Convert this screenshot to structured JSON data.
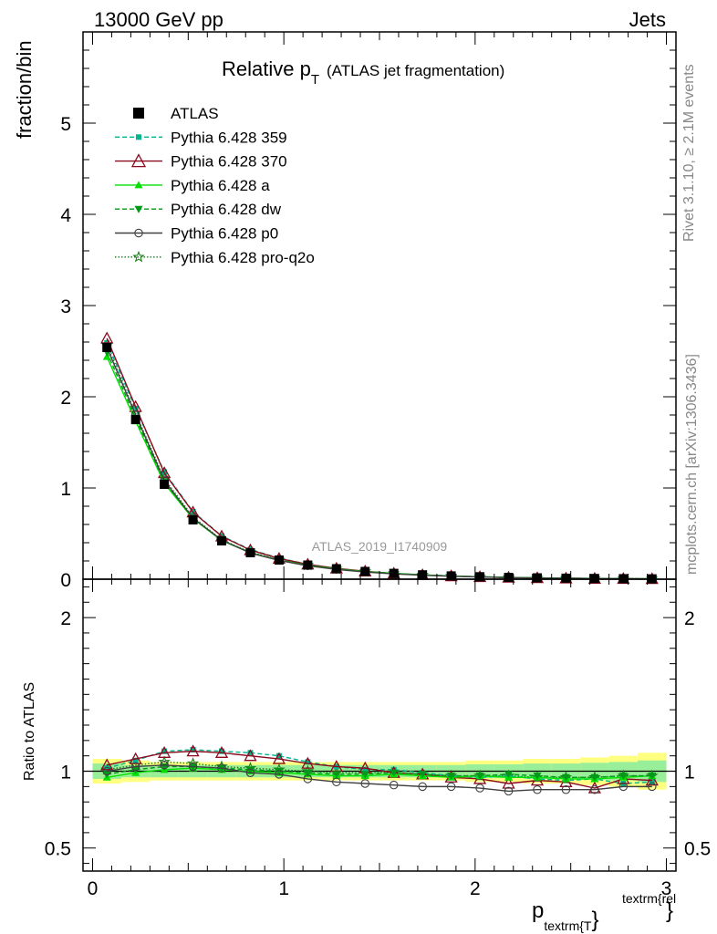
{
  "header": {
    "left": "13000 GeV pp",
    "right": "Jets"
  },
  "side_text": {
    "rivet": "Rivet 3.1.10, ≥ 2.1M events",
    "mcplots": "mcplots.cern.ch [arXiv:1306.3436]"
  },
  "main_panel": {
    "title_main": "Relative p",
    "title_sub": "T",
    "title_suffix": "(ATLAS jet fragmentation)",
    "ylabel": "fraction/bin",
    "watermark": "ATLAS_2019_I1740909"
  },
  "ratio_panel": {
    "ylabel": "Ratio to ATLAS"
  },
  "x_axis": {
    "label_main": "p",
    "label_sub": "textrm{T",
    "label_brace": "}",
    "label_sup": "textrm{rel",
    "label_sup_brace": "}"
  },
  "legend": [
    {
      "label": "ATLAS",
      "color": "#000000",
      "marker": "square-filled",
      "line": "none"
    },
    {
      "label": "Pythia 6.428 359",
      "color": "#00b48c",
      "marker": "square-small-filled",
      "line": "dashed"
    },
    {
      "label": "Pythia 6.428 370",
      "color": "#8b0a1e",
      "marker": "triangle-open",
      "line": "solid"
    },
    {
      "label": "Pythia 6.428 a",
      "color": "#00e000",
      "marker": "triangle-filled",
      "line": "solid"
    },
    {
      "label": "Pythia 6.428 dw",
      "color": "#009a18",
      "marker": "triangle-down-filled",
      "line": "dashed"
    },
    {
      "label": "Pythia 6.428 p0",
      "color": "#404040",
      "marker": "circle-open",
      "line": "solid"
    },
    {
      "label": "Pythia 6.428 pro-q2o",
      "color": "#1e7f1e",
      "marker": "star-open",
      "line": "dotted"
    }
  ],
  "chart_data": {
    "type": "line",
    "x": [
      0.075,
      0.225,
      0.375,
      0.525,
      0.675,
      0.825,
      0.975,
      1.125,
      1.275,
      1.425,
      1.575,
      1.725,
      1.875,
      2.025,
      2.175,
      2.325,
      2.475,
      2.625,
      2.775,
      2.925
    ],
    "xlim": [
      -0.05,
      3.05
    ],
    "xticks": [
      0,
      1,
      2,
      3
    ],
    "ylim": [
      0,
      6.0
    ],
    "yticks": [
      0,
      1,
      2,
      3,
      4,
      5
    ],
    "ratio_ylim": [
      0.35,
      2.25
    ],
    "ratio_yticks": [
      0.5,
      1,
      2
    ],
    "atlas": [
      2.54,
      1.75,
      1.04,
      0.65,
      0.42,
      0.29,
      0.21,
      0.155,
      0.115,
      0.085,
      0.064,
      0.048,
      0.036,
      0.027,
      0.02,
      0.015,
      0.011,
      0.008,
      0.006,
      0.004
    ],
    "band_inner": [
      0.05,
      0.04,
      0.04,
      0.04,
      0.04,
      0.04,
      0.04,
      0.04,
      0.04,
      0.04,
      0.04,
      0.04,
      0.04,
      0.045,
      0.045,
      0.05,
      0.05,
      0.055,
      0.06,
      0.07
    ],
    "band_outer": [
      0.08,
      0.07,
      0.06,
      0.06,
      0.06,
      0.06,
      0.06,
      0.06,
      0.06,
      0.06,
      0.06,
      0.06,
      0.06,
      0.07,
      0.07,
      0.08,
      0.08,
      0.09,
      0.1,
      0.12
    ],
    "series": [
      {
        "name": "Pythia 6.428 359",
        "ratio": [
          1.02,
          1.07,
          1.13,
          1.14,
          1.13,
          1.12,
          1.1,
          1.06,
          1.03,
          1.01,
          1.01,
          0.99,
          0.97,
          0.96,
          0.97,
          0.95,
          0.94,
          0.95,
          0.92,
          0.93
        ]
      },
      {
        "name": "Pythia 6.428 370",
        "ratio": [
          1.04,
          1.08,
          1.12,
          1.13,
          1.12,
          1.1,
          1.08,
          1.05,
          1.03,
          1.02,
          0.99,
          0.98,
          0.96,
          0.95,
          0.92,
          0.94,
          0.93,
          0.89,
          0.95,
          0.94
        ]
      },
      {
        "name": "Pythia 6.428 a",
        "ratio": [
          0.96,
          0.99,
          1.01,
          1.02,
          1.01,
          1.0,
          0.99,
          0.98,
          0.97,
          0.97,
          0.98,
          0.97,
          0.96,
          0.97,
          0.96,
          0.96,
          0.95,
          0.95,
          0.96,
          0.97
        ]
      },
      {
        "name": "Pythia 6.428 dw",
        "ratio": [
          0.98,
          1.01,
          1.03,
          1.03,
          1.02,
          1.01,
          1.0,
          0.99,
          0.98,
          0.98,
          0.99,
          0.98,
          0.97,
          0.97,
          0.98,
          0.97,
          0.96,
          0.96,
          0.97,
          0.97
        ]
      },
      {
        "name": "Pythia 6.428 p0",
        "ratio": [
          1.0,
          1.03,
          1.04,
          1.03,
          1.02,
          0.99,
          0.98,
          0.95,
          0.93,
          0.92,
          0.91,
          0.9,
          0.9,
          0.89,
          0.87,
          0.88,
          0.88,
          0.88,
          0.9,
          0.9
        ]
      },
      {
        "name": "Pythia 6.428 pro-q2o",
        "ratio": [
          1.01,
          1.04,
          1.06,
          1.05,
          1.03,
          1.02,
          1.01,
          1.0,
          0.99,
          0.99,
          0.99,
          0.98,
          0.97,
          0.97,
          0.97,
          0.96,
          0.96,
          0.96,
          0.97,
          0.97
        ]
      }
    ]
  }
}
